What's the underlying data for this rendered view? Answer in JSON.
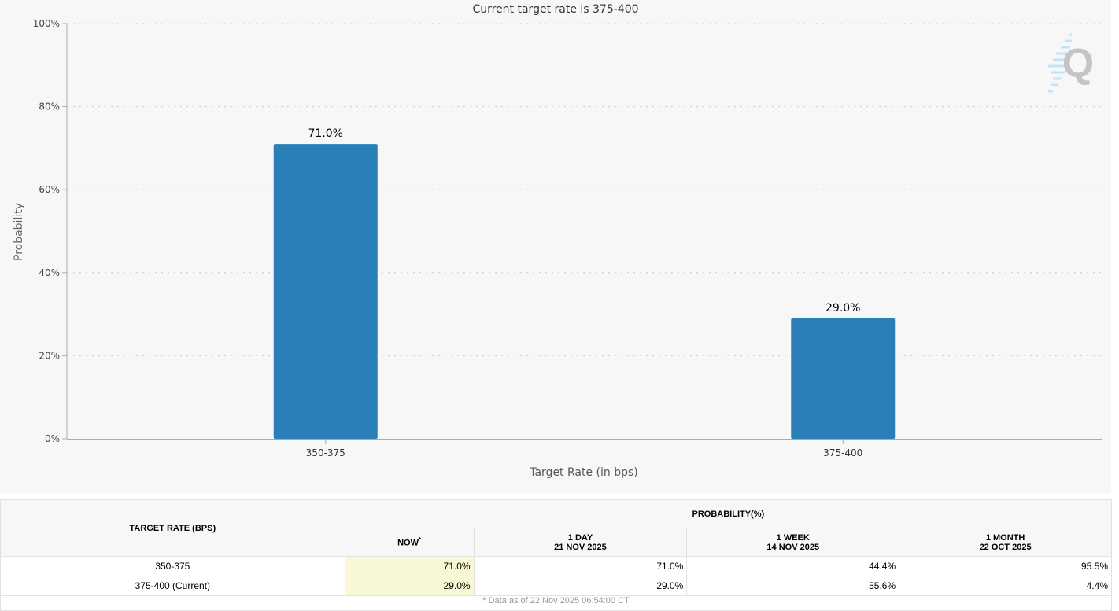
{
  "chart_data": {
    "type": "bar",
    "title": "Current target rate is 375-400",
    "xlabel": "Target Rate (in bps)",
    "ylabel": "Probability",
    "categories": [
      "350-375",
      "375-400"
    ],
    "values": [
      71.0,
      29.0
    ],
    "data_labels": [
      "71.0%",
      "29.0%"
    ],
    "ylim": [
      0,
      100
    ],
    "yticks": [
      "0%",
      "20%",
      "40%",
      "60%",
      "80%",
      "100%"
    ],
    "grid": "horizontal dotted",
    "bar_color": "#2a7fb8",
    "background": "#f7f7f7"
  },
  "watermark": {
    "letter": "Q"
  },
  "table": {
    "col_target": "TARGET RATE (BPS)",
    "col_prob": "PROBABILITY(%)",
    "sub_headers": [
      {
        "line1": "NOW",
        "sup": "*"
      },
      {
        "line1": "1 DAY",
        "line2": "21 NOV 2025"
      },
      {
        "line1": "1 WEEK",
        "line2": "14 NOV 2025"
      },
      {
        "line1": "1 MONTH",
        "line2": "22 OCT 2025"
      }
    ],
    "rows": [
      {
        "rate": "350-375",
        "values": [
          "71.0%",
          "71.0%",
          "44.4%",
          "95.5%"
        ]
      },
      {
        "rate": "375-400 (Current)",
        "values": [
          "29.0%",
          "29.0%",
          "55.6%",
          "4.4%"
        ]
      }
    ],
    "footnote": "* Data as of 22 Nov 2025 06:54:00 CT"
  }
}
